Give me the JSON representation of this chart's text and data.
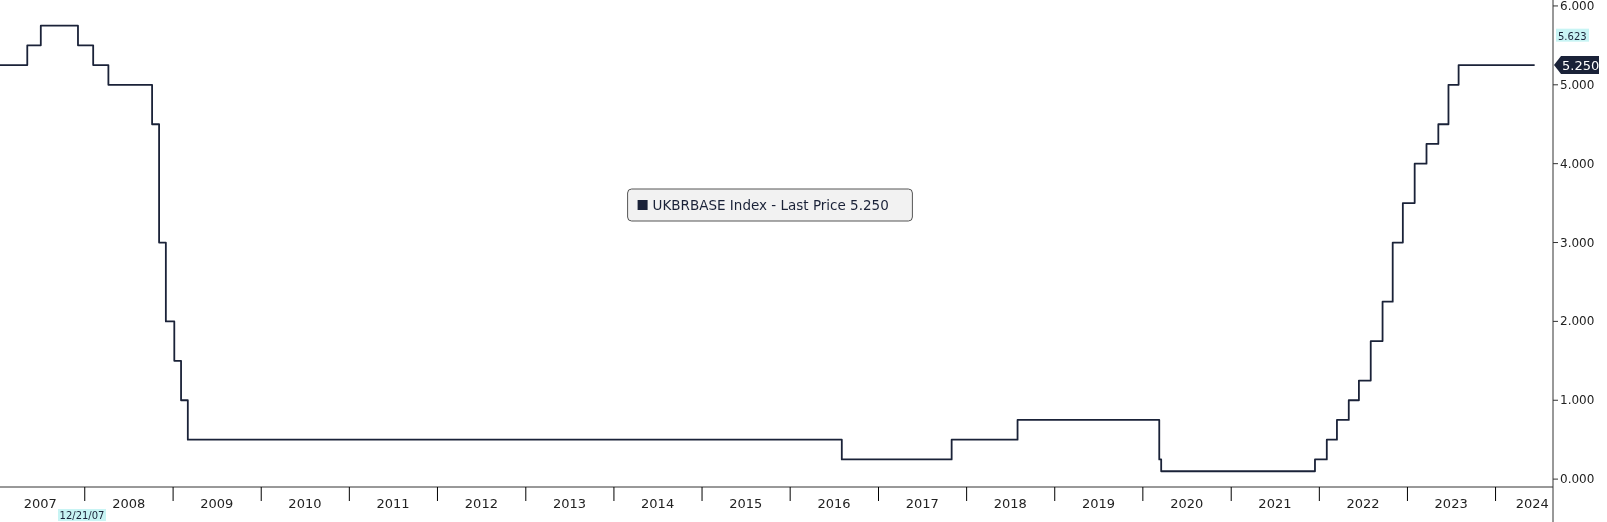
{
  "chart_data": {
    "type": "step",
    "x": [
      "2007-01-17",
      "2007-05-10",
      "2007-07-05",
      "2007-12-06",
      "2008-02-07",
      "2008-04-10",
      "2008-10-08",
      "2008-11-06",
      "2008-12-04",
      "2009-01-08",
      "2009-02-05",
      "2009-03-05",
      "2016-08-04",
      "2017-11-02",
      "2018-08-02",
      "2020-03-11",
      "2020-03-19",
      "2021-12-16",
      "2022-02-03",
      "2022-03-17",
      "2022-05-05",
      "2022-06-16",
      "2022-08-04",
      "2022-09-22",
      "2022-11-03",
      "2022-12-15",
      "2023-02-02",
      "2023-03-23",
      "2023-05-11",
      "2023-06-22",
      "2023-08-03",
      "2024-06-13"
    ],
    "series": [
      {
        "name": "UKBRBASE Index - Last Price 5.250",
        "color": "#1a2238",
        "values": [
          5.25,
          5.5,
          5.75,
          5.5,
          5.25,
          5.0,
          4.5,
          3.0,
          2.0,
          1.5,
          1.0,
          0.5,
          0.25,
          0.5,
          0.75,
          0.25,
          0.1,
          0.25,
          0.5,
          0.75,
          1.0,
          1.25,
          1.75,
          2.25,
          3.0,
          3.5,
          4.0,
          4.25,
          4.5,
          5.0,
          5.25,
          5.25
        ]
      }
    ],
    "xlim": [
      "2007-01-17",
      "2024-08-28"
    ],
    "xticks": [
      {
        "value": "2007-07-01",
        "label": "2007"
      },
      {
        "value": "2008-01-01",
        "label": null
      },
      {
        "value": "2008-07-01",
        "label": "2008"
      },
      {
        "value": "2009-01-01",
        "label": null
      },
      {
        "value": "2009-07-01",
        "label": "2009"
      },
      {
        "value": "2010-01-01",
        "label": null
      },
      {
        "value": "2010-07-01",
        "label": "2010"
      },
      {
        "value": "2011-01-01",
        "label": null
      },
      {
        "value": "2011-07-01",
        "label": "2011"
      },
      {
        "value": "2012-01-01",
        "label": null
      },
      {
        "value": "2012-07-01",
        "label": "2012"
      },
      {
        "value": "2013-01-01",
        "label": null
      },
      {
        "value": "2013-07-01",
        "label": "2013"
      },
      {
        "value": "2014-01-01",
        "label": null
      },
      {
        "value": "2014-07-01",
        "label": "2014"
      },
      {
        "value": "2015-01-01",
        "label": null
      },
      {
        "value": "2015-07-01",
        "label": "2015"
      },
      {
        "value": "2016-01-01",
        "label": null
      },
      {
        "value": "2016-07-01",
        "label": "2016"
      },
      {
        "value": "2017-01-01",
        "label": null
      },
      {
        "value": "2017-07-01",
        "label": "2017"
      },
      {
        "value": "2018-01-01",
        "label": null
      },
      {
        "value": "2018-07-01",
        "label": "2018"
      },
      {
        "value": "2019-01-01",
        "label": null
      },
      {
        "value": "2019-07-01",
        "label": "2019"
      },
      {
        "value": "2020-01-01",
        "label": null
      },
      {
        "value": "2020-07-01",
        "label": "2020"
      },
      {
        "value": "2021-01-01",
        "label": null
      },
      {
        "value": "2021-07-01",
        "label": "2021"
      },
      {
        "value": "2022-01-01",
        "label": null
      },
      {
        "value": "2022-07-01",
        "label": "2022"
      },
      {
        "value": "2023-01-01",
        "label": null
      },
      {
        "value": "2023-07-01",
        "label": "2023"
      },
      {
        "value": "2024-01-01",
        "label": null
      },
      {
        "value": "2024-06-01",
        "label": "2024"
      }
    ],
    "ylim": [
      -0.1,
      6.05
    ],
    "yticks": [
      {
        "value": 0,
        "label": "0.000"
      },
      {
        "value": 1,
        "label": "1.000"
      },
      {
        "value": 2,
        "label": "2.000"
      },
      {
        "value": 3,
        "label": "3.000"
      },
      {
        "value": 4,
        "label": "4.000"
      },
      {
        "value": 5,
        "label": "5.000"
      },
      {
        "value": 6,
        "label": "6.000"
      }
    ],
    "annotations": [
      {
        "text": "5.623",
        "y": 5.623
      },
      "5.250",
      "12/21/07"
    ],
    "legend": "center",
    "grid": false
  }
}
